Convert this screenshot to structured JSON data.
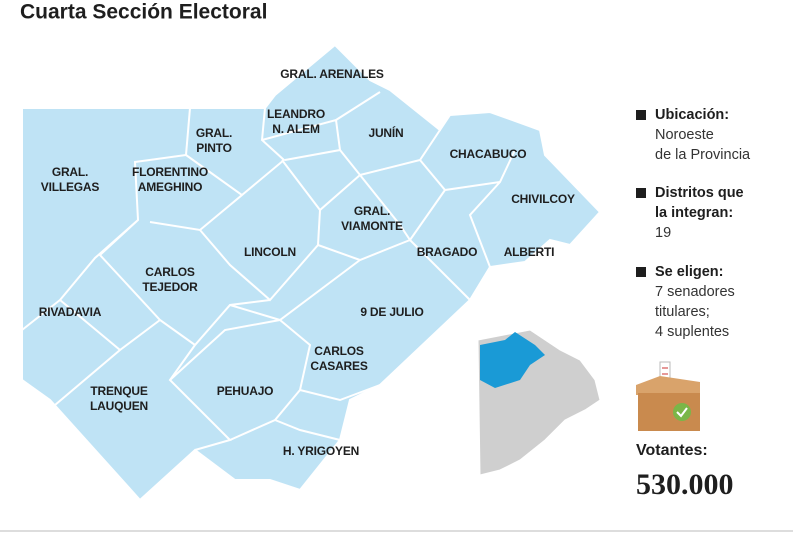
{
  "title": "Cuarta Sección Electoral",
  "districts": [
    {
      "lines": [
        "GRAL. ARENALES"
      ]
    },
    {
      "lines": [
        "LEANDRO",
        "N. ALEM"
      ]
    },
    {
      "lines": [
        "GRAL.",
        "PINTO"
      ]
    },
    {
      "lines": [
        "JUNÍN"
      ]
    },
    {
      "lines": [
        "CHACABUCO"
      ]
    },
    {
      "lines": [
        "GRAL.",
        "VILLEGAS"
      ]
    },
    {
      "lines": [
        "FLORENTINO",
        "AMEGHINO"
      ]
    },
    {
      "lines": [
        "CHIVILCOY"
      ]
    },
    {
      "lines": [
        "GRAL.",
        "VIAMONTE"
      ]
    },
    {
      "lines": [
        "LINCOLN"
      ]
    },
    {
      "lines": [
        "BRAGADO"
      ]
    },
    {
      "lines": [
        "ALBERTI"
      ]
    },
    {
      "lines": [
        "CARLOS",
        "TEJEDOR"
      ]
    },
    {
      "lines": [
        "RIVADAVIA"
      ]
    },
    {
      "lines": [
        "9 DE JULIO"
      ]
    },
    {
      "lines": [
        "CARLOS",
        "CASARES"
      ]
    },
    {
      "lines": [
        "TRENQUE",
        "LAUQUEN"
      ]
    },
    {
      "lines": [
        "PEHUAJO"
      ]
    },
    {
      "lines": [
        "H. YRIGOYEN"
      ]
    }
  ],
  "info": [
    {
      "heading": [
        "Ubicación:"
      ],
      "body": [
        "Noroeste",
        "de la Provincia"
      ]
    },
    {
      "heading": [
        "Distritos que",
        "la integran:"
      ],
      "body": [
        "19"
      ]
    },
    {
      "heading": [
        "Se eligen:"
      ],
      "body": [
        "7 senadores",
        "titulares;",
        "4 suplentes"
      ]
    }
  ],
  "votantes": {
    "label": "Votantes:",
    "value": "530.000"
  }
}
